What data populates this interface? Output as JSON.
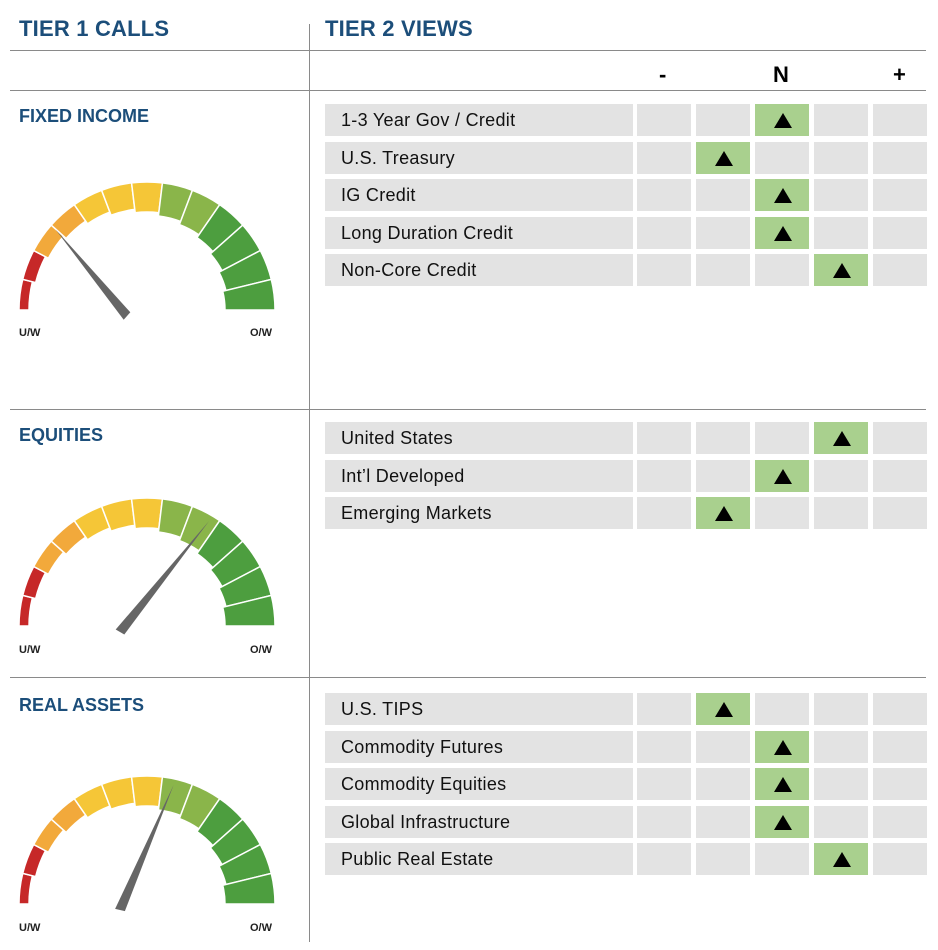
{
  "header": {
    "tier1": "TIER 1 CALLS",
    "tier2": "TIER 2 VIEWS"
  },
  "scale": [
    "-",
    "N",
    "+"
  ],
  "gauge_labels": {
    "left": "U/W",
    "right": "O/W"
  },
  "colors": {
    "header_blue": "#1c4e7a",
    "cell_grey": "#e3e3e3",
    "cell_selected": "#a9d08e",
    "gauge_segments": [
      "#c62828",
      "#f2a93b",
      "#f5c637",
      "#8ab54a",
      "#4d9e3f"
    ],
    "needle": "#666666"
  },
  "chart_data": [
    {
      "type": "gauge",
      "title": "FIXED INCOME",
      "scale": [
        "U/W",
        "O/W"
      ],
      "tier1_value": 0.23,
      "tier2": {
        "positions": [
          "",
          "-",
          "N",
          "+",
          ""
        ],
        "rows": [
          {
            "label": "1-3 Year Gov / Credit",
            "position": 2
          },
          {
            "label": "U.S. Treasury",
            "position": 1
          },
          {
            "label": "IG Credit",
            "position": 2
          },
          {
            "label": "Long Duration Credit",
            "position": 2
          },
          {
            "label": "Non-Core Credit",
            "position": 3
          }
        ]
      }
    },
    {
      "type": "gauge",
      "title": "EQUITIES",
      "scale": [
        "U/W",
        "O/W"
      ],
      "tier1_value": 0.67,
      "tier2": {
        "positions": [
          "",
          "-",
          "N",
          "+",
          ""
        ],
        "rows": [
          {
            "label": "United States",
            "position": 3
          },
          {
            "label": "Int’l Developed",
            "position": 2
          },
          {
            "label": "Emerging Markets",
            "position": 1
          }
        ]
      }
    },
    {
      "type": "gauge",
      "title": "REAL ASSETS",
      "scale": [
        "U/W",
        "O/W"
      ],
      "tier1_value": 0.57,
      "tier2": {
        "positions": [
          "",
          "-",
          "N",
          "+",
          ""
        ],
        "rows": [
          {
            "label": "U.S. TIPS",
            "position": 1
          },
          {
            "label": "Commodity Futures",
            "position": 2
          },
          {
            "label": "Commodity Equities",
            "position": 2
          },
          {
            "label": "Global Infrastructure",
            "position": 2
          },
          {
            "label": "Public Real Estate",
            "position": 3
          }
        ]
      }
    }
  ]
}
